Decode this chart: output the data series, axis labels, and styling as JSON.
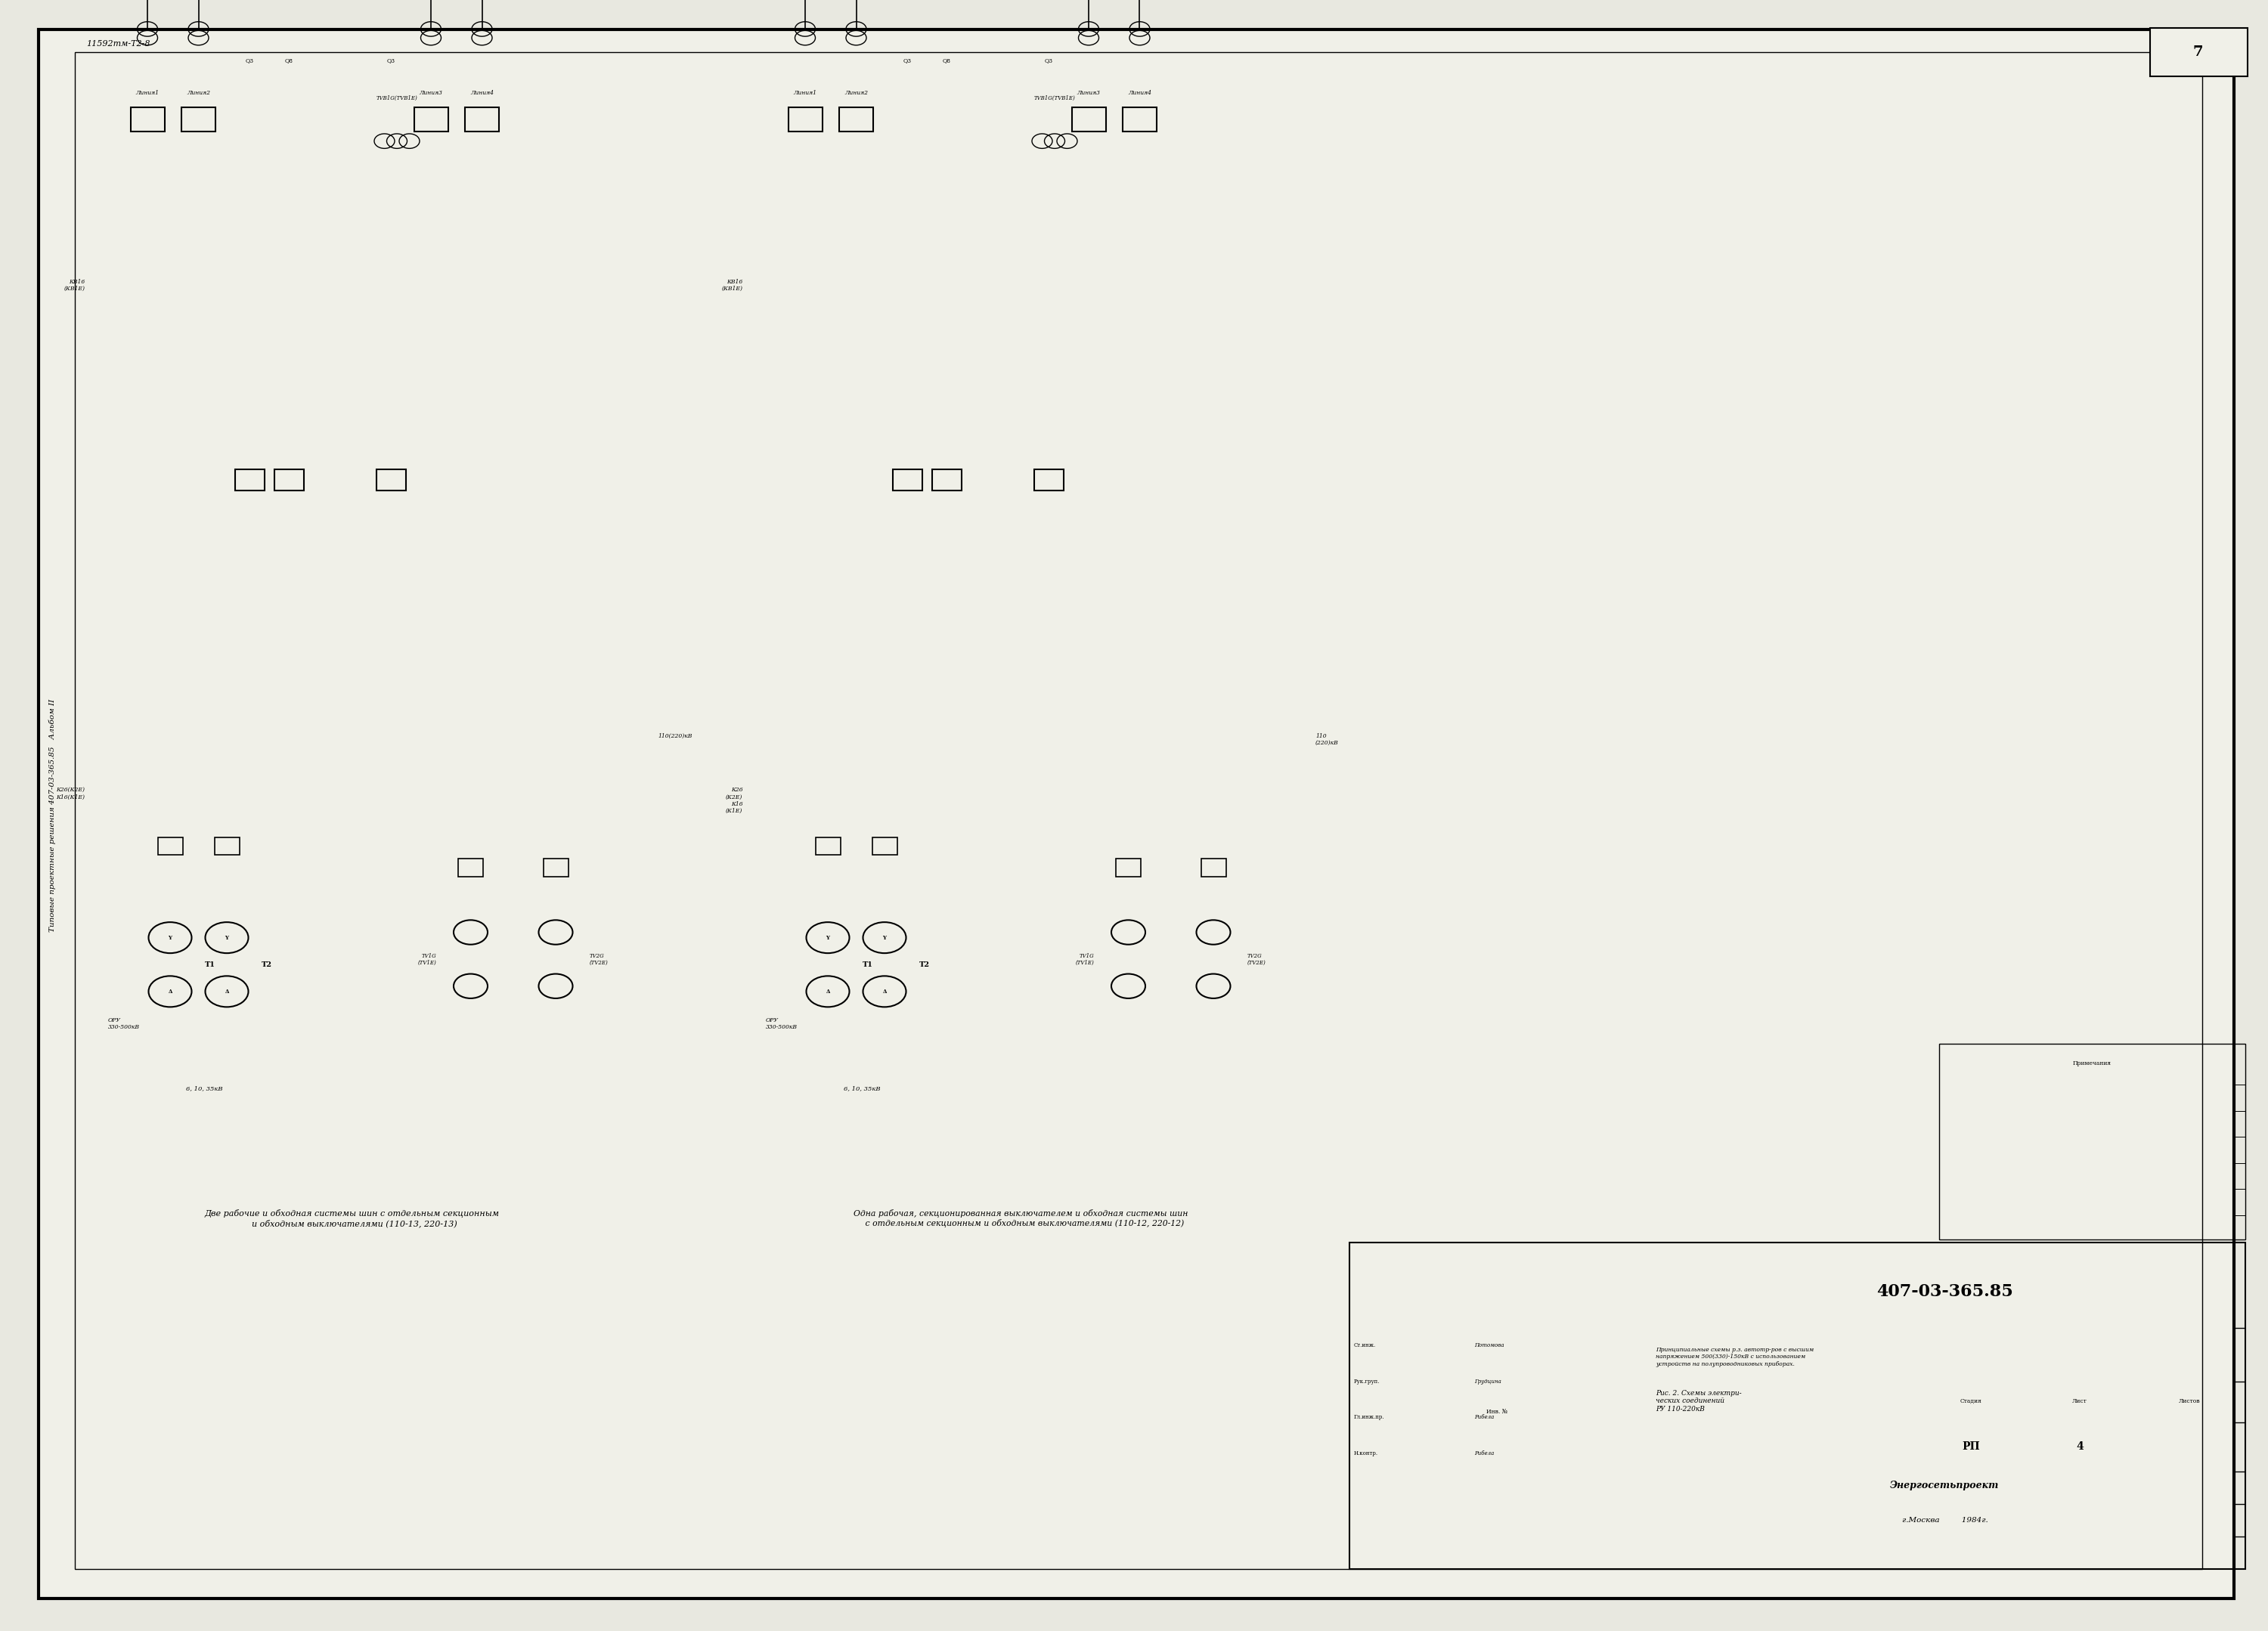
{
  "bg_color": "#e8e8e0",
  "paper_color": "#f0f0e8",
  "line_color": "#000000",
  "title_stamp": "407-03-365.85",
  "stamp_org": "Энергосетьпроект",
  "stamp_city_year": "г.Москва         1984г.",
  "stamp_stage": "РП",
  "stamp_sheet": "4",
  "stamp_desc": "Принципиальные схемы р.з. автотр-ров с высшим\nнапряжением 500(330)-150кВ с использованием\nустройств на полупроводниковых приборах.",
  "left_vertical_text": "Типовые проектные решения 407-03-365.85   Альбом II",
  "top_stamp": "11592тм-Т2-8",
  "page_num": "7",
  "caption_left": "Две рабочие и обходная системы шин с отдельным секционным\n  и обходным выключателями (110-13, 220-13)",
  "caption_right": "Одна рабочая, секционированная выключателем и обходная системы шин\n   с отдельным секционным и обходным выключателями (110-12, 220-12)"
}
